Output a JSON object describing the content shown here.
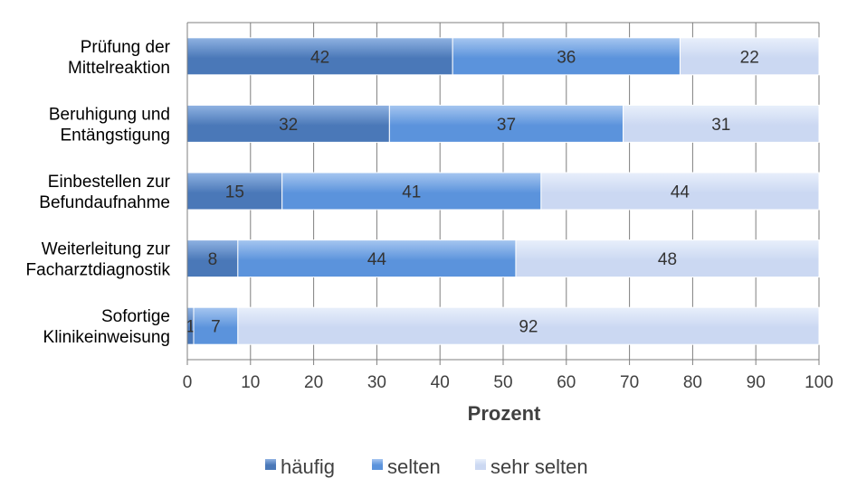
{
  "chart_data": {
    "type": "bar",
    "orientation": "horizontal",
    "stacked": true,
    "categories": [
      [
        "Prüfung der",
        "Mittelreaktion"
      ],
      [
        "Beruhigung und",
        "Entängstigung"
      ],
      [
        "Einbestellen zur",
        "Befundaufnahme"
      ],
      [
        "Weiterleitung zur",
        "Facharztdiagnostik"
      ],
      [
        "Sofortige",
        "Klinikeinweisung"
      ]
    ],
    "series": [
      {
        "name": "häufig",
        "values": [
          42,
          32,
          15,
          8,
          1
        ]
      },
      {
        "name": "selten",
        "values": [
          36,
          37,
          41,
          44,
          7
        ]
      },
      {
        "name": "sehr selten",
        "values": [
          22,
          31,
          44,
          48,
          92
        ]
      }
    ],
    "xlabel": "Prozent",
    "ylabel": "",
    "xlim": [
      0,
      100
    ],
    "xticks": [
      0,
      10,
      20,
      30,
      40,
      50,
      60,
      70,
      80,
      90,
      100
    ],
    "grid": true,
    "legend_position": "bottom",
    "colors": [
      "#4a78b8",
      "#5b93dc",
      "#cbd8f2"
    ],
    "colors_light": [
      "#8fb2e2",
      "#a6c6f0",
      "#e8effb"
    ]
  }
}
